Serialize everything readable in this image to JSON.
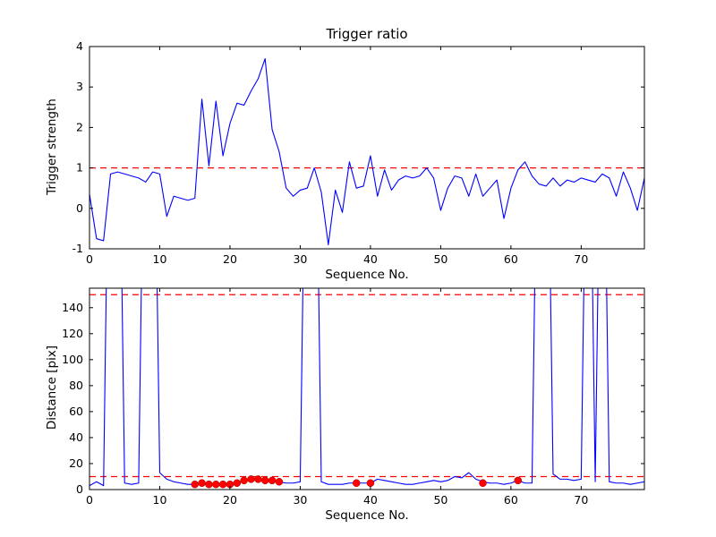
{
  "figure": {
    "background": "#ffffff"
  },
  "chart_data": [
    {
      "type": "line",
      "title": "Trigger ratio",
      "xlabel": "Sequence No.",
      "ylabel": "Trigger strength",
      "xlim": [
        0,
        79
      ],
      "ylim": [
        -1,
        4
      ],
      "xticks": [
        0,
        10,
        20,
        30,
        40,
        50,
        60,
        70
      ],
      "yticks": [
        -1,
        0,
        1,
        2,
        3,
        4
      ],
      "grid": false,
      "legend": "none",
      "threshold_lines": [
        {
          "y": 1,
          "color": "#ff0000",
          "style": "dashed"
        }
      ],
      "series": [
        {
          "name": "trigger strength",
          "color": "#0000ff",
          "x_start": 0,
          "x_step": 1,
          "values": [
            0.35,
            -0.75,
            -0.8,
            0.85,
            0.9,
            0.85,
            0.8,
            0.75,
            0.65,
            0.9,
            0.85,
            -0.2,
            0.3,
            0.25,
            0.2,
            0.25,
            2.7,
            1.05,
            2.65,
            1.3,
            2.1,
            2.6,
            2.55,
            2.9,
            3.2,
            3.7,
            1.95,
            1.4,
            0.5,
            0.3,
            0.45,
            0.5,
            1.0,
            0.4,
            -0.9,
            0.45,
            -0.1,
            1.15,
            0.5,
            0.55,
            1.3,
            0.3,
            0.95,
            0.45,
            0.7,
            0.8,
            0.75,
            0.8,
            1.0,
            0.75,
            -0.05,
            0.5,
            0.8,
            0.75,
            0.3,
            0.85,
            0.3,
            0.5,
            0.7,
            -0.25,
            0.5,
            0.95,
            1.15,
            0.8,
            0.6,
            0.55,
            0.75,
            0.55,
            0.7,
            0.65,
            0.75,
            0.7,
            0.65,
            0.85,
            0.75,
            0.3,
            0.9,
            0.5,
            -0.05,
            0.75
          ]
        }
      ]
    },
    {
      "type": "line",
      "title": "",
      "xlabel": "Sequence No.",
      "ylabel": "Distance [pix]",
      "xlim": [
        0,
        79
      ],
      "ylim": [
        0,
        155
      ],
      "xticks": [
        0,
        10,
        20,
        30,
        40,
        50,
        60,
        70
      ],
      "yticks": [
        0,
        20,
        40,
        60,
        80,
        100,
        120,
        140
      ],
      "grid": false,
      "legend": "none",
      "threshold_lines": [
        {
          "y": 150,
          "color": "#ff0000",
          "style": "dashed"
        },
        {
          "y": 10,
          "color": "#ff0000",
          "style": "dashed"
        }
      ],
      "series": [
        {
          "name": "distance",
          "color": "#0000ff",
          "x_start": 0,
          "x_step": 1,
          "values": [
            3,
            6,
            3,
            400,
            400,
            5,
            4,
            5,
            400,
            400,
            13,
            8,
            6,
            5,
            4,
            4,
            5,
            4,
            4,
            4,
            4,
            5,
            7,
            8,
            8,
            7,
            7,
            6,
            5,
            5,
            6,
            400,
            400,
            6,
            4,
            4,
            4,
            5,
            5,
            5,
            5,
            8,
            7,
            6,
            5,
            4,
            4,
            5,
            6,
            7,
            6,
            7,
            10,
            9,
            13,
            8,
            6,
            5,
            5,
            4,
            5,
            7,
            5,
            5,
            400,
            400,
            12,
            8,
            8,
            7,
            8,
            400,
            6,
            400,
            6,
            5,
            5,
            4,
            5,
            6
          ]
        }
      ],
      "scatter": {
        "name": "matched points",
        "color": "#ff0000",
        "marker": "circle",
        "points": [
          [
            15,
            4
          ],
          [
            16,
            5
          ],
          [
            17,
            4
          ],
          [
            18,
            4
          ],
          [
            19,
            4
          ],
          [
            20,
            4
          ],
          [
            21,
            5
          ],
          [
            22,
            7
          ],
          [
            23,
            8
          ],
          [
            24,
            8
          ],
          [
            25,
            7
          ],
          [
            26,
            7
          ],
          [
            27,
            6
          ],
          [
            38,
            5
          ],
          [
            40,
            5
          ],
          [
            56,
            5
          ],
          [
            61,
            7
          ]
        ]
      }
    }
  ]
}
